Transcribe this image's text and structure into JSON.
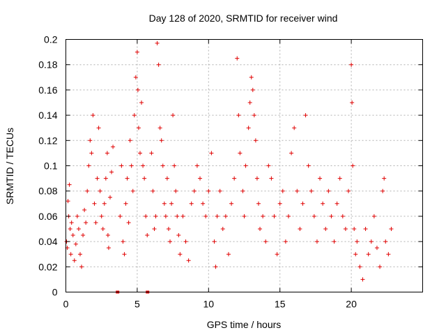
{
  "chart_data": {
    "type": "scatter",
    "title": "Day 128 of 2020, SRMTID for receiver wind",
    "xlabel": "GPS time / hours",
    "ylabel": "SRMTID / TECUs",
    "xlim": [
      0,
      25
    ],
    "ylim": [
      0,
      0.2
    ],
    "x_ticks": [
      0,
      5,
      10,
      15,
      20
    ],
    "x_tick_labels": [
      "0",
      "5",
      "10",
      "15",
      "20"
    ],
    "y_ticks": [
      0,
      0.02,
      0.04,
      0.06,
      0.08,
      0.1,
      0.12,
      0.14,
      0.16,
      0.18,
      0.2
    ],
    "y_tick_labels": [
      "0",
      "0.02",
      "0.04",
      "0.06",
      "0.08",
      "0.1",
      "0.12",
      "0.14",
      "0.16",
      "0.18",
      "0.2"
    ],
    "grid": true,
    "marker": "plus",
    "color": "#e00000",
    "series": [
      {
        "name": "SRMTID",
        "points": [
          [
            0.05,
            0.04
          ],
          [
            0.1,
            0.035
          ],
          [
            0.15,
            0.072
          ],
          [
            0.2,
            0.06
          ],
          [
            0.25,
            0.085
          ],
          [
            0.3,
            0.05
          ],
          [
            0.35,
            0.03
          ],
          [
            0.4,
            0.055
          ],
          [
            0.5,
            0.045
          ],
          [
            0.6,
            0.025
          ],
          [
            0.7,
            0.038
          ],
          [
            0.8,
            0.06
          ],
          [
            0.9,
            0.05
          ],
          [
            1.0,
            0.03
          ],
          [
            1.1,
            0.02
          ],
          [
            1.2,
            0.045
          ],
          [
            1.3,
            0.065
          ],
          [
            1.4,
            0.055
          ],
          [
            1.5,
            0.08
          ],
          [
            1.6,
            0.1
          ],
          [
            1.7,
            0.12
          ],
          [
            1.8,
            0.11
          ],
          [
            1.9,
            0.14
          ],
          [
            2.0,
            0.07
          ],
          [
            2.1,
            0.055
          ],
          [
            2.2,
            0.09
          ],
          [
            2.3,
            0.13
          ],
          [
            2.4,
            0.08
          ],
          [
            2.5,
            0.06
          ],
          [
            2.6,
            0.05
          ],
          [
            2.7,
            0.07
          ],
          [
            2.8,
            0.09
          ],
          [
            2.9,
            0.11
          ],
          [
            2.95,
            0.045
          ],
          [
            3.0,
            0.035
          ],
          [
            3.1,
            0.075
          ],
          [
            3.2,
            0.095
          ],
          [
            3.3,
            0.115
          ],
          [
            3.8,
            0.06
          ],
          [
            3.9,
            0.1
          ],
          [
            4.0,
            0.04
          ],
          [
            4.1,
            0.03
          ],
          [
            4.2,
            0.07
          ],
          [
            4.3,
            0.09
          ],
          [
            4.4,
            0.055
          ],
          [
            4.5,
            0.12
          ],
          [
            4.6,
            0.1
          ],
          [
            4.7,
            0.08
          ],
          [
            4.8,
            0.14
          ],
          [
            4.9,
            0.17
          ],
          [
            5.0,
            0.19
          ],
          [
            5.05,
            0.16
          ],
          [
            5.1,
            0.13
          ],
          [
            5.2,
            0.11
          ],
          [
            5.3,
            0.15
          ],
          [
            5.4,
            0.1
          ],
          [
            5.5,
            0.09
          ],
          [
            5.6,
            0.06
          ],
          [
            5.7,
            0.045
          ],
          [
            6.0,
            0.11
          ],
          [
            6.1,
            0.08
          ],
          [
            6.2,
            0.05
          ],
          [
            6.3,
            0.06
          ],
          [
            6.4,
            0.197
          ],
          [
            6.5,
            0.18
          ],
          [
            6.6,
            0.13
          ],
          [
            6.7,
            0.12
          ],
          [
            6.8,
            0.1
          ],
          [
            6.9,
            0.07
          ],
          [
            7.0,
            0.06
          ],
          [
            7.1,
            0.09
          ],
          [
            7.2,
            0.05
          ],
          [
            7.3,
            0.04
          ],
          [
            7.4,
            0.07
          ],
          [
            7.5,
            0.14
          ],
          [
            7.6,
            0.1
          ],
          [
            7.7,
            0.08
          ],
          [
            7.8,
            0.06
          ],
          [
            7.9,
            0.045
          ],
          [
            8.0,
            0.03
          ],
          [
            8.2,
            0.06
          ],
          [
            8.4,
            0.04
          ],
          [
            8.6,
            0.025
          ],
          [
            8.8,
            0.07
          ],
          [
            9.0,
            0.08
          ],
          [
            9.2,
            0.1
          ],
          [
            9.4,
            0.09
          ],
          [
            9.6,
            0.07
          ],
          [
            9.8,
            0.06
          ],
          [
            10.0,
            0.08
          ],
          [
            10.2,
            0.11
          ],
          [
            10.4,
            0.04
          ],
          [
            10.5,
            0.02
          ],
          [
            10.6,
            0.06
          ],
          [
            10.8,
            0.08
          ],
          [
            11.0,
            0.05
          ],
          [
            11.2,
            0.06
          ],
          [
            11.4,
            0.03
          ],
          [
            11.6,
            0.07
          ],
          [
            11.8,
            0.09
          ],
          [
            12.0,
            0.185
          ],
          [
            12.1,
            0.14
          ],
          [
            12.2,
            0.11
          ],
          [
            12.4,
            0.08
          ],
          [
            12.5,
            0.06
          ],
          [
            12.6,
            0.1
          ],
          [
            12.8,
            0.13
          ],
          [
            12.9,
            0.15
          ],
          [
            13.0,
            0.17
          ],
          [
            13.1,
            0.16
          ],
          [
            13.2,
            0.14
          ],
          [
            13.3,
            0.12
          ],
          [
            13.4,
            0.09
          ],
          [
            13.5,
            0.07
          ],
          [
            13.6,
            0.05
          ],
          [
            13.8,
            0.06
          ],
          [
            14.0,
            0.04
          ],
          [
            14.2,
            0.1
          ],
          [
            14.4,
            0.09
          ],
          [
            14.6,
            0.06
          ],
          [
            14.8,
            0.03
          ],
          [
            15.0,
            0.07
          ],
          [
            15.2,
            0.08
          ],
          [
            15.4,
            0.04
          ],
          [
            15.6,
            0.06
          ],
          [
            15.8,
            0.11
          ],
          [
            16.0,
            0.13
          ],
          [
            16.2,
            0.08
          ],
          [
            16.4,
            0.05
          ],
          [
            16.6,
            0.07
          ],
          [
            16.8,
            0.14
          ],
          [
            17.0,
            0.1
          ],
          [
            17.2,
            0.08
          ],
          [
            17.4,
            0.06
          ],
          [
            17.6,
            0.04
          ],
          [
            17.8,
            0.09
          ],
          [
            18.0,
            0.07
          ],
          [
            18.2,
            0.05
          ],
          [
            18.4,
            0.08
          ],
          [
            18.6,
            0.06
          ],
          [
            18.8,
            0.04
          ],
          [
            19.0,
            0.07
          ],
          [
            19.2,
            0.09
          ],
          [
            19.4,
            0.06
          ],
          [
            19.6,
            0.05
          ],
          [
            19.8,
            0.08
          ],
          [
            20.0,
            0.18
          ],
          [
            20.05,
            0.15
          ],
          [
            20.1,
            0.1
          ],
          [
            20.2,
            0.05
          ],
          [
            20.3,
            0.03
          ],
          [
            20.4,
            0.04
          ],
          [
            20.6,
            0.02
          ],
          [
            20.8,
            0.01
          ],
          [
            21.0,
            0.05
          ],
          [
            21.2,
            0.03
          ],
          [
            21.4,
            0.04
          ],
          [
            21.6,
            0.06
          ],
          [
            21.8,
            0.035
          ],
          [
            22.0,
            0.02
          ],
          [
            22.2,
            0.08
          ],
          [
            22.3,
            0.09
          ],
          [
            22.4,
            0.04
          ],
          [
            22.6,
            0.03
          ],
          [
            22.8,
            0.05
          ]
        ]
      }
    ]
  }
}
